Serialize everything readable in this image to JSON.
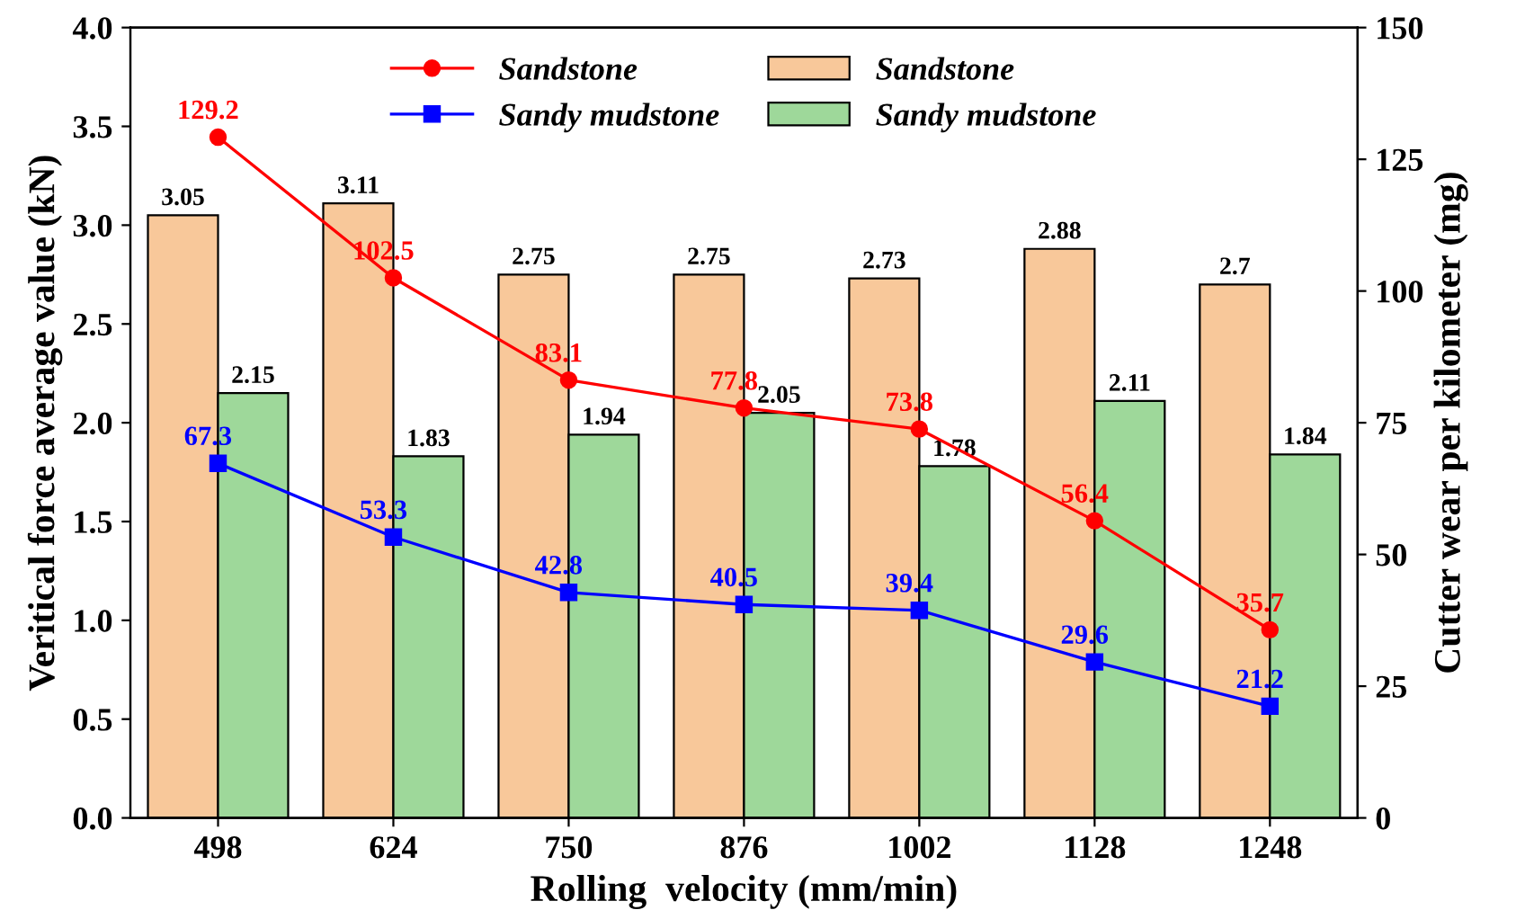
{
  "chart_data": {
    "type": "bar",
    "xlabel": "Rolling  velocity (mm/min)",
    "ylabel": "Veritical force average value (kN)",
    "y2label": "Cutter wear per kilometer (mg)",
    "categories": [
      "498",
      "624",
      "750",
      "876",
      "1002",
      "1128",
      "1248"
    ],
    "series": [
      {
        "name": "Sandstone",
        "type": "line",
        "axis": "y2",
        "color": "#ff0000",
        "marker": "circle",
        "values": [
          129.2,
          102.5,
          83.1,
          77.8,
          73.8,
          56.4,
          35.7
        ]
      },
      {
        "name": "Sandy mudstone",
        "type": "line",
        "axis": "y2",
        "color": "#0000ff",
        "marker": "square",
        "values": [
          67.3,
          53.3,
          42.8,
          40.5,
          39.4,
          29.6,
          21.2
        ]
      },
      {
        "name": "Sandstone",
        "color": "#f8c89a",
        "values": [
          3.05,
          3.11,
          2.75,
          2.75,
          2.73,
          2.88,
          2.7
        ],
        "value_labels": [
          "3.05",
          "3.11",
          "2.75",
          "2.75",
          "2.73",
          "2.88",
          "2.7"
        ]
      },
      {
        "name": "Sandy mudstone",
        "color": "#9ed89a",
        "values": [
          2.15,
          1.83,
          1.94,
          2.05,
          1.78,
          2.11,
          1.84
        ]
      }
    ],
    "data_labels": true,
    "ylim": [
      0,
      4
    ],
    "yticks": [
      {
        "value": 0,
        "label": "0.0"
      },
      0.5,
      {
        "value": 1,
        "label": "1.0"
      },
      1.5,
      {
        "value": 2,
        "label": "2.0"
      },
      2.5,
      {
        "value": 3,
        "label": "3.0"
      },
      3.5,
      {
        "value": 4,
        "label": "4.0"
      }
    ],
    "y2lim": [
      0,
      150
    ],
    "y2ticks": [
      0,
      25,
      50,
      75,
      100,
      125,
      150
    ],
    "grid": false,
    "legend": "top"
  }
}
